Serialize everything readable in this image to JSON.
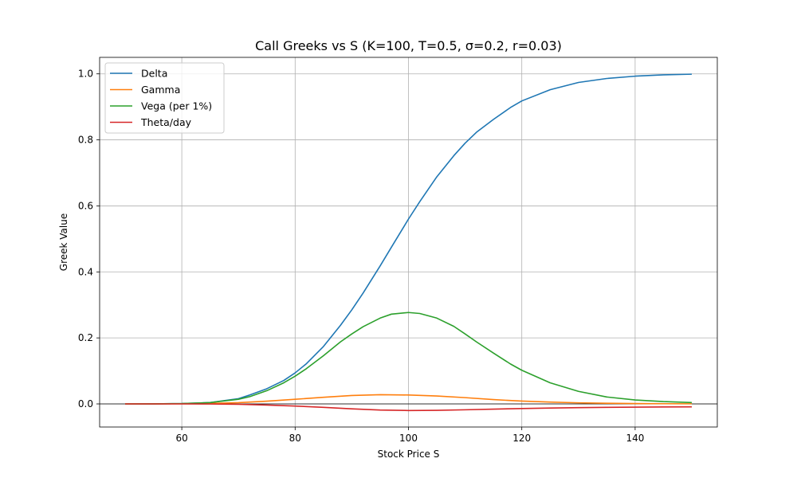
{
  "chart_data": {
    "type": "line",
    "title": "Call Greeks vs S (K=100, T=0.5, σ=0.2, r=0.03)",
    "xlabel": "Stock Price S",
    "ylabel": "Greek Value",
    "xlim": [
      45.5,
      154.5
    ],
    "ylim": [
      -0.07,
      1.05
    ],
    "xticks": [
      60,
      80,
      100,
      120,
      140
    ],
    "yticks": [
      0.0,
      0.2,
      0.4,
      0.6,
      0.8,
      1.0
    ],
    "xtick_labels": [
      "60",
      "80",
      "100",
      "120",
      "140"
    ],
    "ytick_labels": [
      "0.0",
      "0.2",
      "0.4",
      "0.6",
      "0.8",
      "1.0"
    ],
    "grid": true,
    "zero_line": true,
    "legend_position": "upper-left",
    "series": [
      {
        "name": "Delta",
        "color": "#1f77b4",
        "x": [
          50,
          55,
          60,
          65,
          70,
          72,
          75,
          78,
          80,
          82,
          85,
          88,
          90,
          92,
          95,
          97,
          100,
          102,
          105,
          108,
          110,
          112,
          115,
          118,
          120,
          125,
          130,
          135,
          140,
          145,
          150
        ],
        "values": [
          0.0,
          0.0001,
          0.001,
          0.004,
          0.016,
          0.027,
          0.046,
          0.071,
          0.094,
          0.122,
          0.174,
          0.238,
          0.285,
          0.336,
          0.418,
          0.475,
          0.56,
          0.613,
          0.688,
          0.752,
          0.79,
          0.823,
          0.862,
          0.898,
          0.918,
          0.952,
          0.974,
          0.986,
          0.993,
          0.997,
          0.999
        ]
      },
      {
        "name": "Gamma",
        "color": "#ff7f0e",
        "x": [
          50,
          55,
          60,
          65,
          70,
          75,
          80,
          85,
          90,
          95,
          100,
          105,
          110,
          115,
          120,
          125,
          130,
          135,
          140,
          145,
          150
        ],
        "values": [
          0.0,
          0.0,
          0.0004,
          0.0013,
          0.0038,
          0.0082,
          0.014,
          0.02,
          0.0255,
          0.028,
          0.027,
          0.024,
          0.019,
          0.013,
          0.0085,
          0.0055,
          0.0033,
          0.0019,
          0.0011,
          0.0006,
          0.0003
        ]
      },
      {
        "name": "Vega (per 1%)",
        "color": "#2ca02c",
        "x": [
          50,
          55,
          60,
          65,
          70,
          72,
          75,
          78,
          80,
          82,
          85,
          88,
          90,
          92,
          95,
          97,
          100,
          102,
          105,
          108,
          110,
          112,
          115,
          118,
          120,
          125,
          130,
          135,
          140,
          145,
          150
        ],
        "values": [
          0.0,
          0.0001,
          0.001,
          0.004,
          0.014,
          0.022,
          0.04,
          0.064,
          0.084,
          0.107,
          0.146,
          0.188,
          0.212,
          0.234,
          0.26,
          0.272,
          0.277,
          0.274,
          0.26,
          0.235,
          0.212,
          0.188,
          0.154,
          0.121,
          0.102,
          0.064,
          0.038,
          0.021,
          0.012,
          0.007,
          0.004
        ]
      },
      {
        "name": "Theta/day",
        "color": "#d62728",
        "x": [
          50,
          55,
          60,
          65,
          70,
          75,
          80,
          85,
          90,
          95,
          100,
          105,
          110,
          115,
          120,
          125,
          130,
          135,
          140,
          145,
          150
        ],
        "values": [
          0.0,
          0.0,
          0.0,
          -0.0003,
          -0.0012,
          -0.0035,
          -0.0065,
          -0.0105,
          -0.015,
          -0.0185,
          -0.02,
          -0.0195,
          -0.0178,
          -0.0158,
          -0.014,
          -0.0125,
          -0.0113,
          -0.0104,
          -0.0097,
          -0.0092,
          -0.0089
        ]
      }
    ]
  }
}
